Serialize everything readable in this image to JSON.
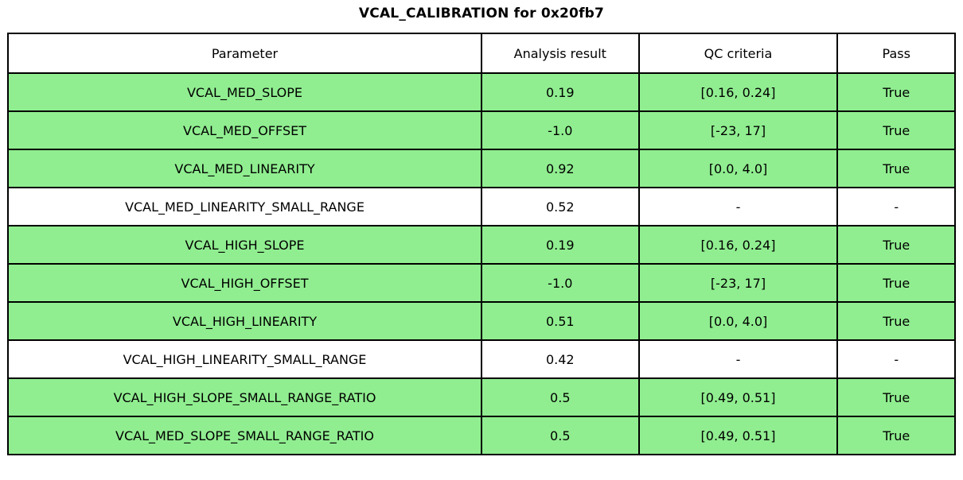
{
  "chart_data": {
    "type": "table",
    "title": "VCAL_CALIBRATION for 0x20fb7",
    "columns": [
      "Parameter",
      "Analysis result",
      "QC criteria",
      "Pass"
    ],
    "rows": [
      {
        "parameter": "VCAL_MED_SLOPE",
        "analysis_result": "0.19",
        "qc_criteria": "[0.16, 0.24]",
        "pass": "True",
        "highlighted": true
      },
      {
        "parameter": "VCAL_MED_OFFSET",
        "analysis_result": "-1.0",
        "qc_criteria": "[-23, 17]",
        "pass": "True",
        "highlighted": true
      },
      {
        "parameter": "VCAL_MED_LINEARITY",
        "analysis_result": "0.92",
        "qc_criteria": "[0.0, 4.0]",
        "pass": "True",
        "highlighted": true
      },
      {
        "parameter": "VCAL_MED_LINEARITY_SMALL_RANGE",
        "analysis_result": "0.52",
        "qc_criteria": "-",
        "pass": "-",
        "highlighted": false
      },
      {
        "parameter": "VCAL_HIGH_SLOPE",
        "analysis_result": "0.19",
        "qc_criteria": "[0.16, 0.24]",
        "pass": "True",
        "highlighted": true
      },
      {
        "parameter": "VCAL_HIGH_OFFSET",
        "analysis_result": "-1.0",
        "qc_criteria": "[-23, 17]",
        "pass": "True",
        "highlighted": true
      },
      {
        "parameter": "VCAL_HIGH_LINEARITY",
        "analysis_result": "0.51",
        "qc_criteria": "[0.0, 4.0]",
        "pass": "True",
        "highlighted": true
      },
      {
        "parameter": "VCAL_HIGH_LINEARITY_SMALL_RANGE",
        "analysis_result": "0.42",
        "qc_criteria": "-",
        "pass": "-",
        "highlighted": false
      },
      {
        "parameter": "VCAL_HIGH_SLOPE_SMALL_RANGE_RATIO",
        "analysis_result": "0.5",
        "qc_criteria": "[0.49, 0.51]",
        "pass": "True",
        "highlighted": true
      },
      {
        "parameter": "VCAL_MED_SLOPE_SMALL_RANGE_RATIO",
        "analysis_result": "0.5",
        "qc_criteria": "[0.49, 0.51]",
        "pass": "True",
        "highlighted": true
      }
    ]
  },
  "colors": {
    "pass_green": "#90ee90",
    "row_plain": "#ffffff",
    "border": "#000000",
    "text": "#000000"
  }
}
